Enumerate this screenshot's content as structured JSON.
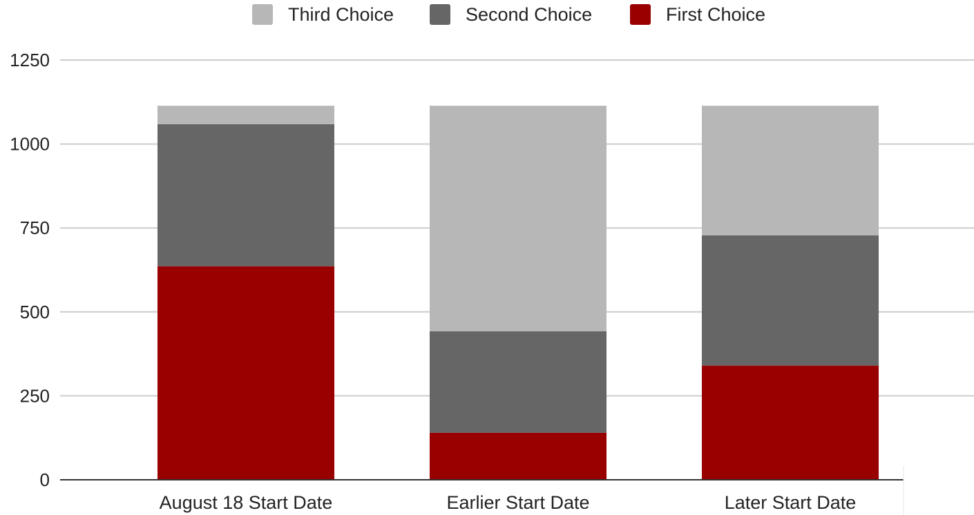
{
  "chart_data": {
    "type": "bar",
    "stacked": true,
    "categories": [
      "August 18 Start Date",
      "Earlier Start Date",
      "Later Start Date"
    ],
    "series": [
      {
        "name": "First Choice",
        "color": "#990000",
        "values": [
          636,
          140,
          340
        ]
      },
      {
        "name": "Second Choice",
        "color": "#666666",
        "values": [
          423,
          302,
          388
        ]
      },
      {
        "name": "Third Choice",
        "color": "#b7b7b7",
        "values": [
          55,
          672,
          386
        ]
      }
    ],
    "legend_order": [
      "Third Choice",
      "Second Choice",
      "First Choice"
    ],
    "legend_position": "top",
    "ylim": [
      0,
      1250
    ],
    "yticks": [
      "0",
      "250",
      "500",
      "750",
      "1000",
      "1250"
    ],
    "grid": true,
    "title": "",
    "xlabel": "",
    "ylabel": ""
  }
}
